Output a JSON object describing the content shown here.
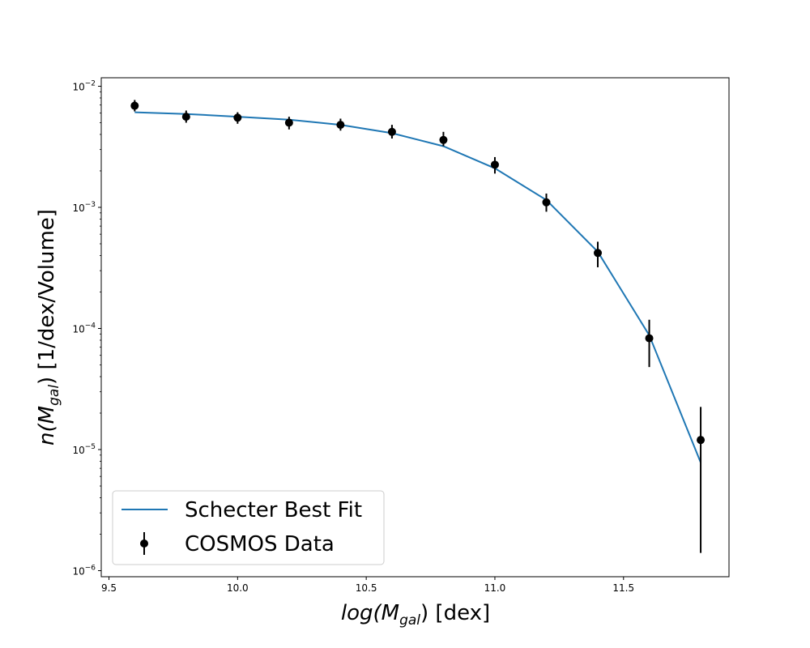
{
  "chart_data": {
    "type": "scatter",
    "xlabel": {
      "pre": "log(",
      "main": "M",
      "sub": "gal",
      "post": ") [dex]"
    },
    "ylabel": {
      "pre": "n(",
      "main": "M",
      "sub": "gal",
      "post": ")  [1/dex/Volume]"
    },
    "xlim": [
      9.47,
      11.91
    ],
    "ylim_log10": [
      -6.05,
      -1.93
    ],
    "yscale": "log",
    "x_ticks": [
      "9.5",
      "10.0",
      "10.5",
      "11.0",
      "11.5"
    ],
    "x_tick_values": [
      9.5,
      10.0,
      10.5,
      11.0,
      11.5
    ],
    "y_ticks": [
      {
        "base": "10",
        "exp": "−2",
        "value": 0.01
      },
      {
        "base": "10",
        "exp": "−3",
        "value": 0.001
      },
      {
        "base": "10",
        "exp": "−4",
        "value": 0.0001
      },
      {
        "base": "10",
        "exp": "−5",
        "value": 1e-05
      },
      {
        "base": "10",
        "exp": "−6",
        "value": 1e-06
      }
    ],
    "legend_position": "lower-left",
    "series": [
      {
        "name": "Schecter Best Fit",
        "type": "line",
        "color": "#1f77b4",
        "x": [
          9.6,
          9.8,
          10.0,
          10.2,
          10.4,
          10.6,
          10.8,
          11.0,
          11.2,
          11.4,
          11.6,
          11.8
        ],
        "y": [
          0.0061,
          0.0059,
          0.0056,
          0.0053,
          0.0048,
          0.0041,
          0.0032,
          0.0021,
          0.00115,
          0.00043,
          8.8e-05,
          7.8e-06
        ]
      },
      {
        "name": "COSMOS Data",
        "type": "errorbar",
        "color": "#000000",
        "x": [
          9.6,
          9.8,
          10.0,
          10.2,
          10.4,
          10.6,
          10.8,
          11.0,
          11.2,
          11.4,
          11.6,
          11.8
        ],
        "y": [
          0.0069,
          0.0056,
          0.0055,
          0.005,
          0.0048,
          0.0042,
          0.0036,
          0.00225,
          0.0011,
          0.00042,
          8.3e-05,
          1.2e-05
        ],
        "y_lower": [
          0.0062,
          0.005,
          0.0049,
          0.0044,
          0.0043,
          0.0037,
          0.0032,
          0.0019,
          0.00092,
          0.00032,
          4.8e-05,
          1.4e-06
        ],
        "y_upper": [
          0.0077,
          0.0063,
          0.0061,
          0.0056,
          0.0054,
          0.0048,
          0.0042,
          0.0026,
          0.0013,
          0.00052,
          0.000118,
          2.25e-05
        ]
      }
    ]
  }
}
